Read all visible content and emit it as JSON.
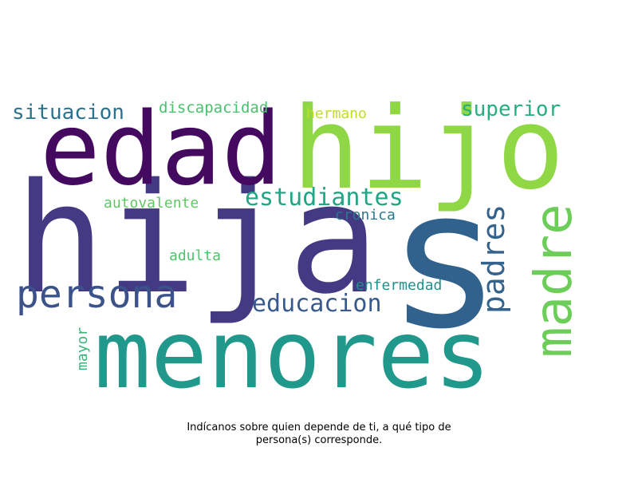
{
  "words": [
    {
      "text": "hija",
      "color": "#433a83"
    },
    {
      "text": "s",
      "color": "#31618d"
    },
    {
      "text": "menores",
      "color": "#20988b"
    },
    {
      "text": "edad",
      "color": "#440a5f"
    },
    {
      "text": "hijo",
      "color": "#8fd744"
    },
    {
      "text": "madre",
      "color": "#6ccd59"
    },
    {
      "text": "persona",
      "color": "#3b528b"
    },
    {
      "text": "estudiantes",
      "color": "#21a585"
    },
    {
      "text": "padres",
      "color": "#33638d"
    },
    {
      "text": "educacion",
      "color": "#38598c"
    },
    {
      "text": "superior",
      "color": "#27ad81"
    },
    {
      "text": "situacion",
      "color": "#2c728e"
    },
    {
      "text": "discapacidad",
      "color": "#4ac16d"
    },
    {
      "text": "hermano",
      "color": "#bddf26"
    },
    {
      "text": "autovalente",
      "color": "#5ec962"
    },
    {
      "text": "cronica",
      "color": "#2a788e"
    },
    {
      "text": "adulta",
      "color": "#4ec36b"
    },
    {
      "text": "enfermedad",
      "color": "#21918c"
    },
    {
      "text": "mayor",
      "color": "#37b679"
    }
  ],
  "caption": {
    "line1": "Indícanos sobre quien depende de ti, a qué tipo de",
    "line2": "persona(s) corresponde."
  }
}
